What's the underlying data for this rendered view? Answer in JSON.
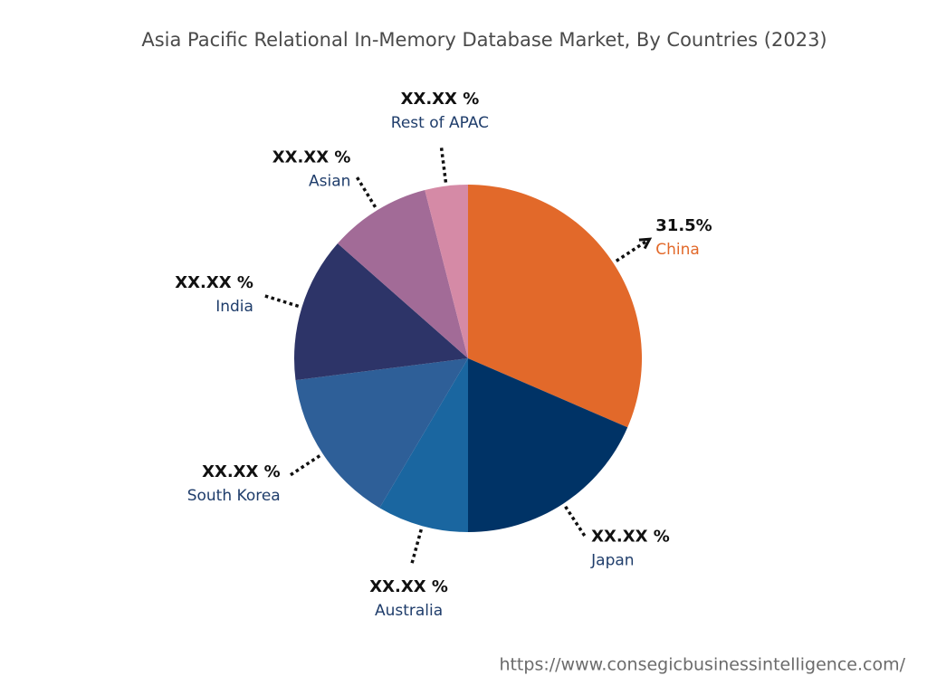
{
  "chart_data": {
    "type": "pie",
    "title": "Asia Pacific Relational In-Memory Database Market, By Countries (2023)",
    "categories": [
      "China",
      "Japan",
      "Australia",
      "South Korea",
      "India",
      "Asian",
      "Rest of APAC"
    ],
    "values": [
      31.5,
      18.5,
      8.5,
      14.5,
      13.5,
      9.5,
      4
    ],
    "value_labels": [
      "31.5%",
      "XX.XX %",
      "XX.XX %",
      "XX.XX %",
      "XX.XX %",
      "XX.XX %",
      "XX.XX %"
    ],
    "colors": [
      "#e2692a",
      "#003366",
      "#1a66a0",
      "#2e5f98",
      "#2d3468",
      "#a26b97",
      "#d58aa6"
    ],
    "source": "https://www.consegicbusinessintelligence.com/"
  }
}
